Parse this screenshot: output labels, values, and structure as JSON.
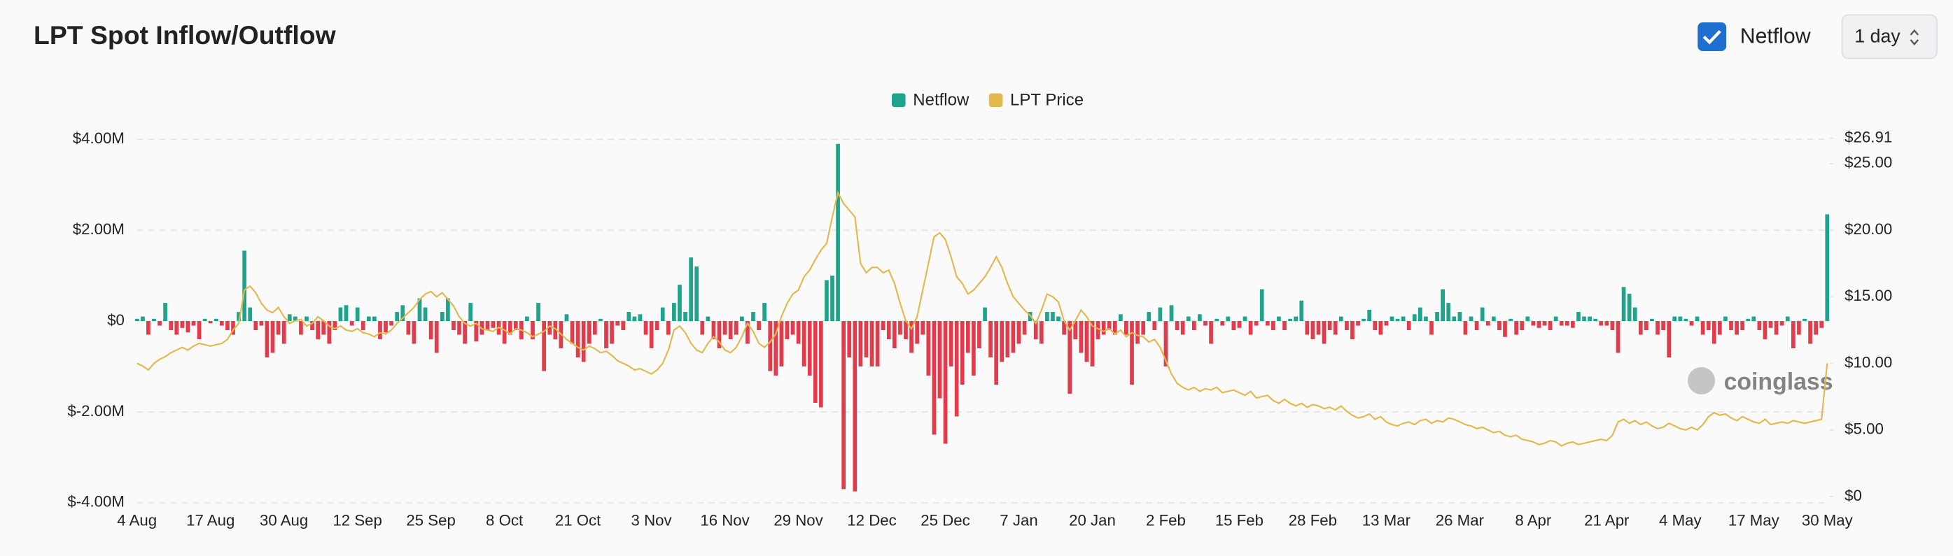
{
  "controls": {
    "toggle": "Netflow",
    "interval": "1 day"
  },
  "chart_data": {
    "type": "bar-line",
    "title": "LPT Spot Inflow/Outflow",
    "watermark": "coinglass",
    "categories": [
      "4 Aug",
      null,
      null,
      null,
      null,
      null,
      null,
      null,
      null,
      null,
      null,
      null,
      null,
      "17 Aug",
      null,
      null,
      null,
      null,
      null,
      null,
      null,
      null,
      null,
      null,
      null,
      null,
      "30 Aug",
      null,
      null,
      null,
      null,
      null,
      null,
      null,
      null,
      null,
      null,
      null,
      null,
      "12 Sep",
      null,
      null,
      null,
      null,
      null,
      null,
      null,
      null,
      null,
      null,
      null,
      null,
      "25 Sep",
      null,
      null,
      null,
      null,
      null,
      null,
      null,
      null,
      null,
      null,
      null,
      null,
      "8 Oct",
      null,
      null,
      null,
      null,
      null,
      null,
      null,
      null,
      null,
      null,
      null,
      null,
      "21 Oct",
      null,
      null,
      null,
      null,
      null,
      null,
      null,
      null,
      null,
      null,
      null,
      null,
      "3 Nov",
      null,
      null,
      null,
      null,
      null,
      null,
      null,
      null,
      null,
      null,
      null,
      null,
      "16 Nov",
      null,
      null,
      null,
      null,
      null,
      null,
      null,
      null,
      null,
      null,
      null,
      null,
      "29 Nov",
      null,
      null,
      null,
      null,
      null,
      null,
      null,
      null,
      null,
      null,
      null,
      null,
      "12 Dec",
      null,
      null,
      null,
      null,
      null,
      null,
      null,
      null,
      null,
      null,
      null,
      null,
      "25 Dec",
      null,
      null,
      null,
      null,
      null,
      null,
      null,
      null,
      null,
      null,
      null,
      null,
      "7 Jan",
      null,
      null,
      null,
      null,
      null,
      null,
      null,
      null,
      null,
      null,
      null,
      null,
      "20 Jan",
      null,
      null,
      null,
      null,
      null,
      null,
      null,
      null,
      null,
      null,
      null,
      null,
      "2 Feb",
      null,
      null,
      null,
      null,
      null,
      null,
      null,
      null,
      null,
      null,
      null,
      null,
      "15 Feb",
      null,
      null,
      null,
      null,
      null,
      null,
      null,
      null,
      null,
      null,
      null,
      null,
      "28 Feb",
      null,
      null,
      null,
      null,
      null,
      null,
      null,
      null,
      null,
      null,
      null,
      null,
      "13 Mar",
      null,
      null,
      null,
      null,
      null,
      null,
      null,
      null,
      null,
      null,
      null,
      null,
      "26 Mar",
      null,
      null,
      null,
      null,
      null,
      null,
      null,
      null,
      null,
      null,
      null,
      null,
      "8 Apr",
      null,
      null,
      null,
      null,
      null,
      null,
      null,
      null,
      null,
      null,
      null,
      null,
      "21 Apr",
      null,
      null,
      null,
      null,
      null,
      null,
      null,
      null,
      null,
      null,
      null,
      null,
      "4 May",
      null,
      null,
      null,
      null,
      null,
      null,
      null,
      null,
      null,
      null,
      null,
      null,
      "17 May",
      null,
      null,
      null,
      null,
      null,
      null,
      null,
      null,
      null,
      null,
      null,
      null,
      "30 May"
    ],
    "series": [
      {
        "name": "Netflow",
        "color": "#1fa48b",
        "negative_color": "#e23b4c",
        "values": [
          0.05,
          0.1,
          -0.3,
          0.05,
          -0.1,
          0.4,
          -0.2,
          -0.3,
          -0.15,
          -0.25,
          -0.1,
          -0.4,
          0.05,
          -0.05,
          0.05,
          -0.1,
          -0.2,
          -0.3,
          0.2,
          1.55,
          0.3,
          -0.2,
          -0.1,
          -0.8,
          -0.7,
          -0.3,
          -0.5,
          0.15,
          0.1,
          -0.3,
          0.1,
          -0.2,
          -0.4,
          -0.3,
          -0.5,
          -0.2,
          0.3,
          0.35,
          -0.1,
          0.3,
          -0.2,
          0.1,
          0.1,
          -0.4,
          -0.25,
          -0.1,
          0.2,
          0.35,
          -0.3,
          -0.5,
          0.5,
          0.3,
          -0.4,
          -0.7,
          0.2,
          0.5,
          -0.2,
          -0.3,
          -0.5,
          0.4,
          -0.45,
          -0.3,
          -0.2,
          -0.15,
          -0.3,
          -0.5,
          -0.3,
          -0.2,
          -0.4,
          0.1,
          -0.4,
          0.4,
          -1.1,
          -0.3,
          -0.4,
          -0.6,
          0.15,
          -0.5,
          -0.8,
          -0.9,
          -0.5,
          -0.3,
          0.05,
          -0.6,
          -0.5,
          -0.1,
          -0.2,
          0.2,
          0.1,
          0.15,
          -0.3,
          -0.6,
          -0.2,
          0.3,
          -0.3,
          0.4,
          0.8,
          0.2,
          1.4,
          1.2,
          -0.3,
          0.1,
          -0.4,
          -0.6,
          -0.3,
          -0.4,
          -0.3,
          0.1,
          -0.5,
          0.2,
          -0.2,
          0.4,
          -1.1,
          -1.2,
          -1.0,
          -0.4,
          -0.3,
          -0.5,
          -1.0,
          -1.2,
          -1.8,
          -1.9,
          0.9,
          1.0,
          3.9,
          -3.7,
          -0.8,
          -3.75,
          -1.0,
          -0.8,
          -1.0,
          -1.0,
          -0.2,
          -0.4,
          -0.6,
          -0.3,
          -0.4,
          -0.7,
          -0.5,
          -0.3,
          -1.2,
          -2.5,
          -1.7,
          -2.7,
          -1.0,
          -2.1,
          -1.4,
          -0.7,
          -1.2,
          -0.6,
          0.3,
          -0.8,
          -1.4,
          -0.9,
          -0.8,
          -0.7,
          -0.5,
          -0.3,
          0.2,
          -0.4,
          -0.5,
          0.2,
          0.2,
          0.1,
          -0.3,
          -1.6,
          -0.4,
          -0.7,
          -0.9,
          -1.0,
          -0.4,
          -0.3,
          -0.2,
          -0.3,
          0.15,
          -0.3,
          -1.4,
          -0.5,
          -0.3,
          0.2,
          -0.2,
          0.3,
          -1.0,
          0.35,
          -0.2,
          -0.3,
          0.1,
          -0.2,
          0.15,
          -0.1,
          -0.5,
          0.05,
          -0.1,
          0.1,
          -0.2,
          -0.15,
          0.1,
          -0.3,
          -0.1,
          0.7,
          -0.1,
          -0.2,
          0.1,
          -0.2,
          0.05,
          0.1,
          0.45,
          -0.3,
          -0.4,
          -0.3,
          -0.5,
          -0.2,
          -0.3,
          0.1,
          -0.2,
          -0.4,
          -0.1,
          0.05,
          0.25,
          -0.2,
          -0.3,
          -0.1,
          0.1,
          0.05,
          0.1,
          -0.2,
          0.15,
          0.3,
          0.1,
          -0.3,
          0.2,
          0.7,
          0.4,
          0.1,
          0.2,
          -0.3,
          0.1,
          -0.2,
          0.3,
          -0.1,
          0.1,
          -0.2,
          -0.35,
          0.05,
          -0.3,
          -0.2,
          0.1,
          -0.1,
          -0.15,
          -0.1,
          -0.2,
          0.1,
          -0.1,
          -0.1,
          -0.15,
          0.2,
          0.1,
          0.1,
          0.05,
          -0.1,
          -0.1,
          -0.2,
          -0.7,
          0.75,
          0.6,
          0.3,
          -0.3,
          -0.2,
          0.05,
          -0.3,
          -0.2,
          -0.8,
          0.1,
          0.1,
          0.05,
          -0.1,
          0.1,
          -0.3,
          -0.2,
          -0.5,
          -0.3,
          0.1,
          -0.2,
          -0.3,
          -0.2,
          0.05,
          0.1,
          -0.2,
          -0.4,
          -0.15,
          -0.3,
          -0.1,
          0.1,
          -0.6,
          -0.3,
          0.05,
          -0.5,
          -0.3,
          -0.15,
          2.35
        ]
      },
      {
        "name": "LPT Price",
        "color": "#e3b84c",
        "axis": "y2",
        "values": [
          10,
          9.8,
          9.5,
          10,
          10.3,
          10.5,
          10.8,
          11,
          11.2,
          11,
          11.3,
          11.5,
          11.4,
          11.3,
          11.4,
          11.5,
          11.8,
          12.5,
          13,
          15.5,
          15.8,
          15.3,
          14.5,
          14,
          13.8,
          14.2,
          13.5,
          13,
          13.2,
          13.3,
          12.8,
          13,
          13.5,
          13.2,
          12.8,
          12.6,
          12.8,
          12.5,
          12.4,
          12.6,
          12.3,
          12.2,
          12,
          12.3,
          12.2,
          12.5,
          13,
          13.4,
          13.8,
          14.2,
          14.8,
          15.2,
          15.4,
          15,
          15.3,
          14.8,
          14.3,
          13.5,
          13,
          12.8,
          13,
          12.6,
          12.5,
          12.4,
          12.7,
          12.5,
          12.2,
          12.6,
          12.5,
          12.3,
          12,
          12.2,
          12.4,
          12.8,
          12.6,
          12.2,
          11.8,
          11.5,
          11.2,
          11,
          11.3,
          11.1,
          10.8,
          10.9,
          10.6,
          10.2,
          10,
          9.8,
          9.5,
          9.6,
          9.4,
          9.2,
          9.5,
          10,
          11,
          12.5,
          12.8,
          12.3,
          11.5,
          11,
          10.8,
          11.5,
          12,
          11.6,
          11,
          10.8,
          11.2,
          12,
          13,
          12.4,
          11.5,
          11.2,
          11.6,
          12.2,
          13.5,
          14.5,
          15.2,
          15.5,
          16.5,
          17,
          17.8,
          18.5,
          19,
          21,
          22.8,
          22,
          21.5,
          21,
          17.5,
          16.8,
          17.2,
          17.2,
          16.8,
          17,
          16,
          14.5,
          13.2,
          12.6,
          13.5,
          15.5,
          17.5,
          19.5,
          19.8,
          19.3,
          18,
          16.5,
          16,
          15.2,
          15.5,
          16,
          16.5,
          17.2,
          18,
          17.2,
          16,
          15,
          14.5,
          14,
          13.6,
          13,
          14,
          15.2,
          15,
          14.6,
          13.2,
          12.5,
          13.2,
          14,
          13.5,
          12.8,
          12.6,
          12.4,
          12.6,
          12.2,
          12.5,
          12,
          12.3,
          12.1,
          12,
          11.6,
          11.8,
          11.2,
          10.2,
          9.2,
          8.5,
          8.2,
          8,
          8.2,
          7.9,
          8.1,
          8,
          8.2,
          7.8,
          7.9,
          8,
          7.8,
          7.6,
          7.9,
          7.4,
          7.5,
          7.6,
          7.2,
          7,
          7.3,
          7,
          6.8,
          7,
          6.7,
          6.9,
          6.8,
          6.6,
          6.7,
          6.5,
          6.8,
          6.4,
          6.1,
          5.9,
          6,
          6.2,
          5.8,
          6,
          5.6,
          5.4,
          5.3,
          5.5,
          5.6,
          5.4,
          5.7,
          5.8,
          5.5,
          5.7,
          5.6,
          5.9,
          5.8,
          5.6,
          5.4,
          5.3,
          5.1,
          5.2,
          5,
          4.8,
          4.9,
          4.6,
          4.5,
          4.6,
          4.3,
          4.2,
          4.1,
          3.9,
          4,
          4.2,
          4.1,
          3.8,
          4,
          4.1,
          3.9,
          4,
          4.1,
          4.2,
          4.3,
          4.2,
          4.6,
          5.6,
          5.8,
          5.5,
          5.7,
          5.4,
          5.6,
          5.3,
          5.1,
          5.2,
          5.5,
          5.3,
          5.1,
          5,
          5.2,
          5,
          5.4,
          6,
          6.3,
          6.1,
          6.2,
          5.9,
          5.7,
          6,
          5.8,
          5.6,
          5.5,
          5.8,
          5.4,
          5.5,
          5.6,
          5.5,
          5.7,
          5.6,
          5.5,
          5.6,
          5.7,
          5.8,
          10
        ]
      }
    ],
    "ylim": [
      -4,
      4
    ],
    "yticks": [
      {
        "value": -4,
        "label": "$-4.00M"
      },
      {
        "value": -2,
        "label": "$-2.00M"
      },
      {
        "value": 0,
        "label": "$0"
      },
      {
        "value": 2,
        "label": "$2.00M"
      },
      {
        "value": 4,
        "label": "$4.00M"
      }
    ],
    "y2lim": [
      0,
      26.91
    ],
    "y2ticks": [
      {
        "value": 0,
        "label": "$0"
      },
      {
        "value": 5,
        "label": "$5.00"
      },
      {
        "value": 10,
        "label": "$10.00"
      },
      {
        "value": 15,
        "label": "$15.00"
      },
      {
        "value": 20,
        "label": "$20.00"
      },
      {
        "value": 25,
        "label": "$25.00"
      },
      {
        "value": 26.91,
        "label": "$26.91"
      }
    ],
    "grid": true,
    "legend": "top"
  }
}
